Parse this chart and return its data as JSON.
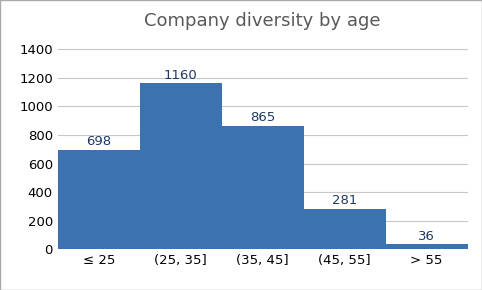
{
  "title": "Company diversity by age",
  "categories": [
    "≤ 25",
    "(25, 35]",
    "(35, 45]",
    "(45, 55]",
    "> 55"
  ],
  "values": [
    698,
    1160,
    865,
    281,
    36
  ],
  "bar_color": "#3C72B0",
  "bar_labels": [
    "698",
    "1160",
    "865",
    "281",
    "36"
  ],
  "bar_label_color": "#203864",
  "ylim": [
    0,
    1500
  ],
  "yticks": [
    0,
    200,
    400,
    600,
    800,
    1000,
    1200,
    1400
  ],
  "title_fontsize": 13,
  "tick_fontsize": 9.5,
  "label_fontsize": 9.5,
  "background_color": "#ffffff",
  "plot_background_color": "#ffffff",
  "grid_color": "#c8c8c8",
  "border_color": "#aaaaaa"
}
